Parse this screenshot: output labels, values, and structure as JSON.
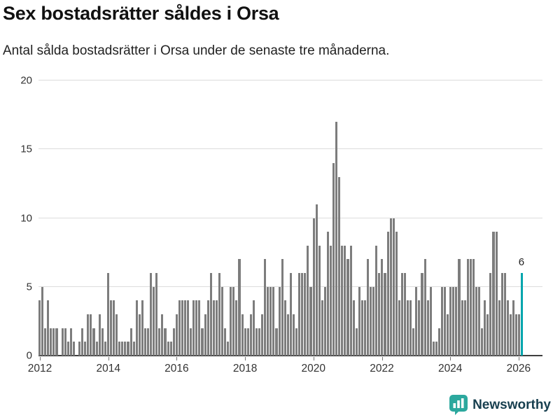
{
  "header": {
    "title": "Sex bostadsrätter såldes i Orsa",
    "subtitle": "Antal sålda bostadsrätter i Orsa under de senaste tre månaderna."
  },
  "chart_data": {
    "type": "bar",
    "title": "Sex bostadsrätter såldes i Orsa",
    "subtitle": "Antal sålda bostadsrätter i Orsa under de senaste tre månaderna.",
    "x_start": "2012-01",
    "x_unit": "month",
    "ylim": [
      0,
      20
    ],
    "yticks": [
      0,
      5,
      10,
      15,
      20
    ],
    "grid": "horizontal",
    "legend": "none",
    "bar_color": "#7d7d7d",
    "highlight_color": "#00a5ad",
    "highlight_index": 169,
    "highlight_label": "6",
    "x_ticks": [
      {
        "label": "2012",
        "month_index": 0
      },
      {
        "label": "2014",
        "month_index": 24
      },
      {
        "label": "2016",
        "month_index": 48
      },
      {
        "label": "2018",
        "month_index": 72
      },
      {
        "label": "2020",
        "month_index": 96
      },
      {
        "label": "2022",
        "month_index": 120
      },
      {
        "label": "2024",
        "month_index": 144
      },
      {
        "label": "2026",
        "month_index": 168
      }
    ],
    "values": [
      4,
      5,
      2,
      4,
      2,
      2,
      2,
      0,
      2,
      2,
      1,
      2,
      1,
      0,
      1,
      2,
      1,
      3,
      3,
      2,
      1,
      3,
      2,
      1,
      6,
      4,
      4,
      3,
      1,
      1,
      1,
      1,
      2,
      1,
      4,
      3,
      4,
      2,
      2,
      6,
      5,
      6,
      2,
      3,
      2,
      1,
      1,
      2,
      3,
      4,
      4,
      4,
      4,
      2,
      4,
      4,
      4,
      2,
      3,
      4,
      6,
      4,
      4,
      6,
      5,
      2,
      1,
      5,
      5,
      4,
      7,
      3,
      2,
      2,
      3,
      4,
      2,
      2,
      3,
      7,
      5,
      5,
      5,
      2,
      5,
      7,
      4,
      3,
      6,
      3,
      2,
      6,
      6,
      6,
      8,
      5,
      10,
      11,
      8,
      4,
      5,
      9,
      8,
      14,
      17,
      13,
      8,
      8,
      7,
      8,
      4,
      2,
      5,
      4,
      4,
      7,
      5,
      5,
      8,
      6,
      7,
      6,
      9,
      10,
      10,
      9,
      4,
      6,
      6,
      4,
      4,
      2,
      5,
      4,
      6,
      7,
      4,
      5,
      1,
      1,
      2,
      5,
      5,
      3,
      5,
      5,
      5,
      7,
      4,
      4,
      7,
      7,
      7,
      5,
      5,
      2,
      4,
      3,
      6,
      9,
      9,
      4,
      6,
      6,
      4,
      3,
      4,
      3,
      3,
      6
    ]
  },
  "footer": {
    "brand": "Newsworthy",
    "brand_icon_color": "#2ca89e",
    "brand_text_color": "#173f4f"
  }
}
